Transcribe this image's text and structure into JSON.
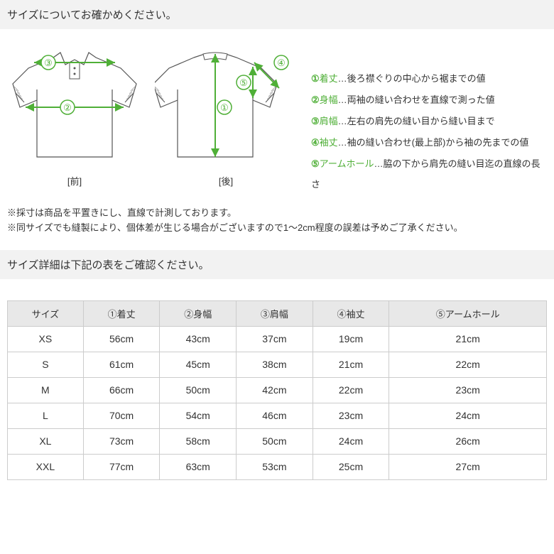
{
  "headers": {
    "size_check": "サイズについてお確かめください。",
    "table_check": "サイズ詳細は下記の表をご確認ください。"
  },
  "shirt_labels": {
    "front": "[前]",
    "back": "[後]"
  },
  "diagram": {
    "accent_color": "#4faf37",
    "shirt_fill": "#ffffff",
    "shirt_stroke": "#555555",
    "circle_fill": "#ffffff",
    "circle_stroke": "#4faf37",
    "arrow_stroke_width": 2,
    "nums": {
      "n1": "①",
      "n2": "②",
      "n3": "③",
      "n4": "④",
      "n5": "⑤"
    }
  },
  "legend": [
    {
      "num": "①",
      "term": "着丈",
      "desc": "…後ろ襟ぐりの中心から裾までの値"
    },
    {
      "num": "②",
      "term": "身幅",
      "desc": "…両袖の縫い合わせを直線で測った値"
    },
    {
      "num": "③",
      "term": "肩幅",
      "desc": "…左右の肩先の縫い目から縫い目まで"
    },
    {
      "num": "④",
      "term": "袖丈",
      "desc": "…袖の縫い合わせ(最上部)から袖の先までの値"
    },
    {
      "num": "⑤",
      "term": "アームホール",
      "desc": "…脇の下から肩先の縫い目迄の直線の長さ"
    }
  ],
  "notes": {
    "line1": "※採寸は商品を平置きにし、直線で計測しております。",
    "line2": "※同サイズでも縫製により、個体差が生じる場合がございますので1〜2cm程度の誤差は予めご了承ください。"
  },
  "table": {
    "columns": [
      "サイズ",
      "①着丈",
      "②身幅",
      "③肩幅",
      "④袖丈",
      "⑤アームホール"
    ],
    "rows": [
      [
        "XS",
        "56cm",
        "43cm",
        "37cm",
        "19cm",
        "21cm"
      ],
      [
        "S",
        "61cm",
        "45cm",
        "38cm",
        "21cm",
        "22cm"
      ],
      [
        "M",
        "66cm",
        "50cm",
        "42cm",
        "22cm",
        "23cm"
      ],
      [
        "L",
        "70cm",
        "54cm",
        "46cm",
        "23cm",
        "24cm"
      ],
      [
        "XL",
        "73cm",
        "58cm",
        "50cm",
        "24cm",
        "26cm"
      ],
      [
        "XXL",
        "77cm",
        "63cm",
        "53cm",
        "25cm",
        "27cm"
      ]
    ]
  }
}
